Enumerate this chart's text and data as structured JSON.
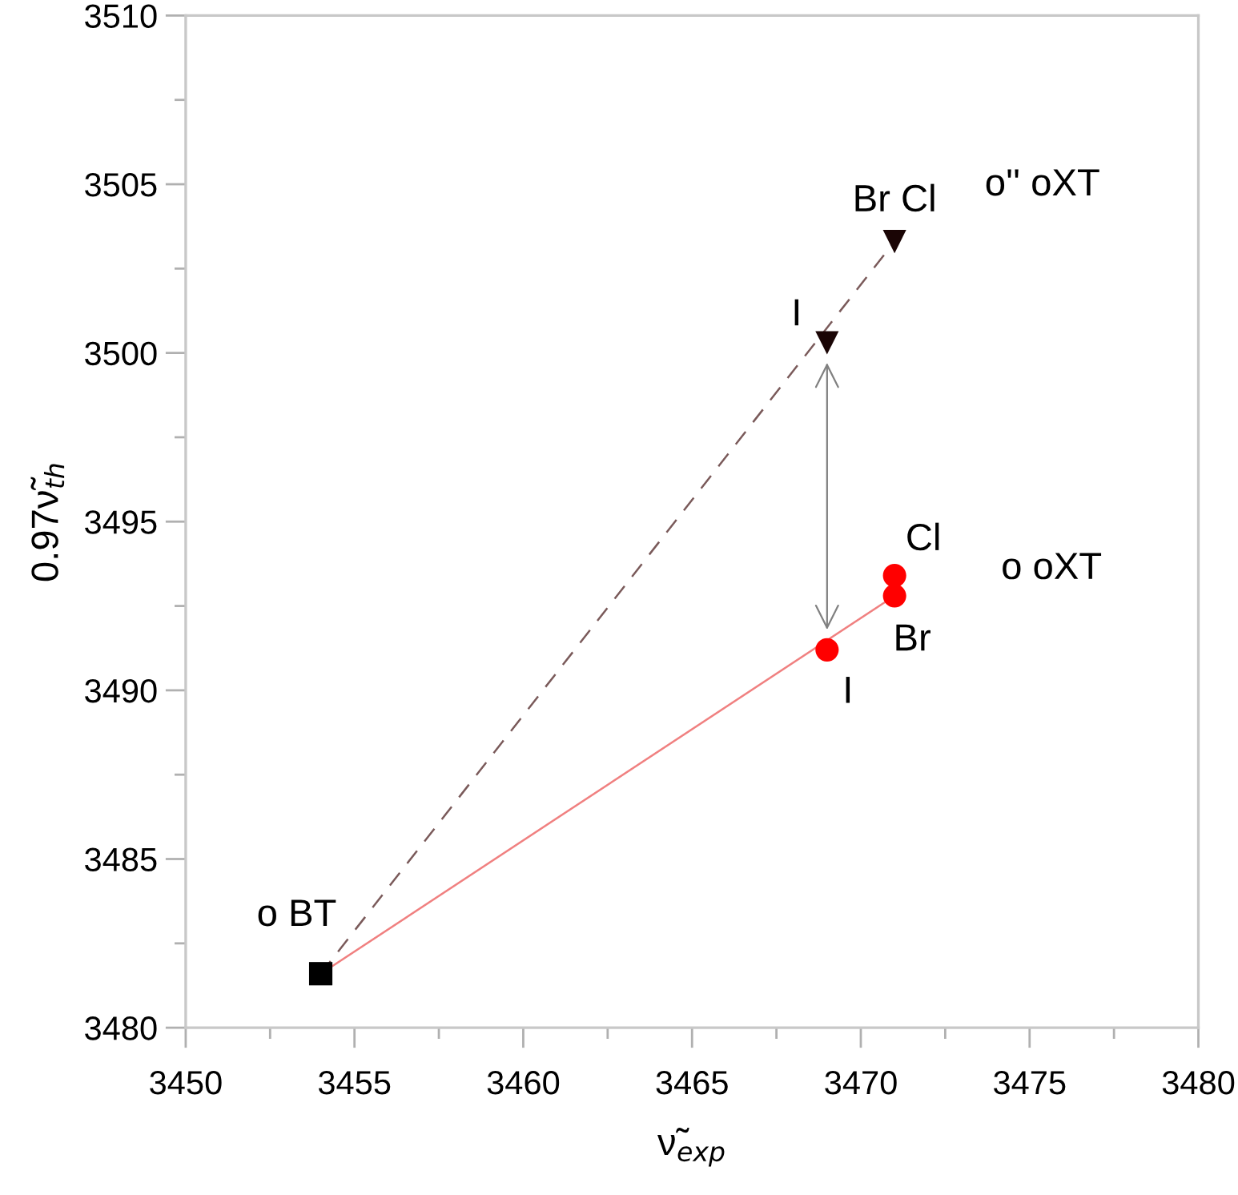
{
  "chart_data": {
    "type": "scatter",
    "xlabel": "ν̃$_{exp}$",
    "ylabel": "0.97ν̃$_{th}$",
    "xlim": [
      3450,
      3480
    ],
    "ylim": [
      3480,
      3510
    ],
    "xticks": [
      3450,
      3455,
      3460,
      3465,
      3470,
      3475,
      3480
    ],
    "yticks": [
      3480,
      3485,
      3490,
      3495,
      3500,
      3505,
      3510
    ],
    "grid": false,
    "legend": false,
    "series": [
      {
        "type": "line",
        "x": [
          3454,
          3471
        ],
        "values": [
          3481.6,
          3503.3
        ],
        "color": "#7a5a5a",
        "line_style": "dashed",
        "marker": "none"
      },
      {
        "type": "line",
        "x": [
          3454,
          3471
        ],
        "values": [
          3481.6,
          3492.8
        ],
        "color": "#f08080",
        "line_style": "solid",
        "marker": "none"
      },
      {
        "name": "o BT",
        "x": [
          3454
        ],
        "values": [
          3481.6
        ],
        "color": "#000000",
        "marker": "square"
      },
      {
        "x": [
          3469,
          3471
        ],
        "values": [
          3500.3,
          3503.3
        ],
        "value_labels": [
          "I",
          "Br Cl"
        ],
        "color": "#1a0505",
        "marker": "triangle"
      },
      {
        "x": [
          3469,
          3471,
          3471
        ],
        "values": [
          3491.2,
          3492.8,
          3493.4
        ],
        "value_labels": [
          "I",
          "Br",
          "Cl"
        ],
        "color": "#ff0000",
        "marker": "circle"
      }
    ],
    "annotations": [
      "o'' oXT",
      "o oXT"
    ]
  }
}
